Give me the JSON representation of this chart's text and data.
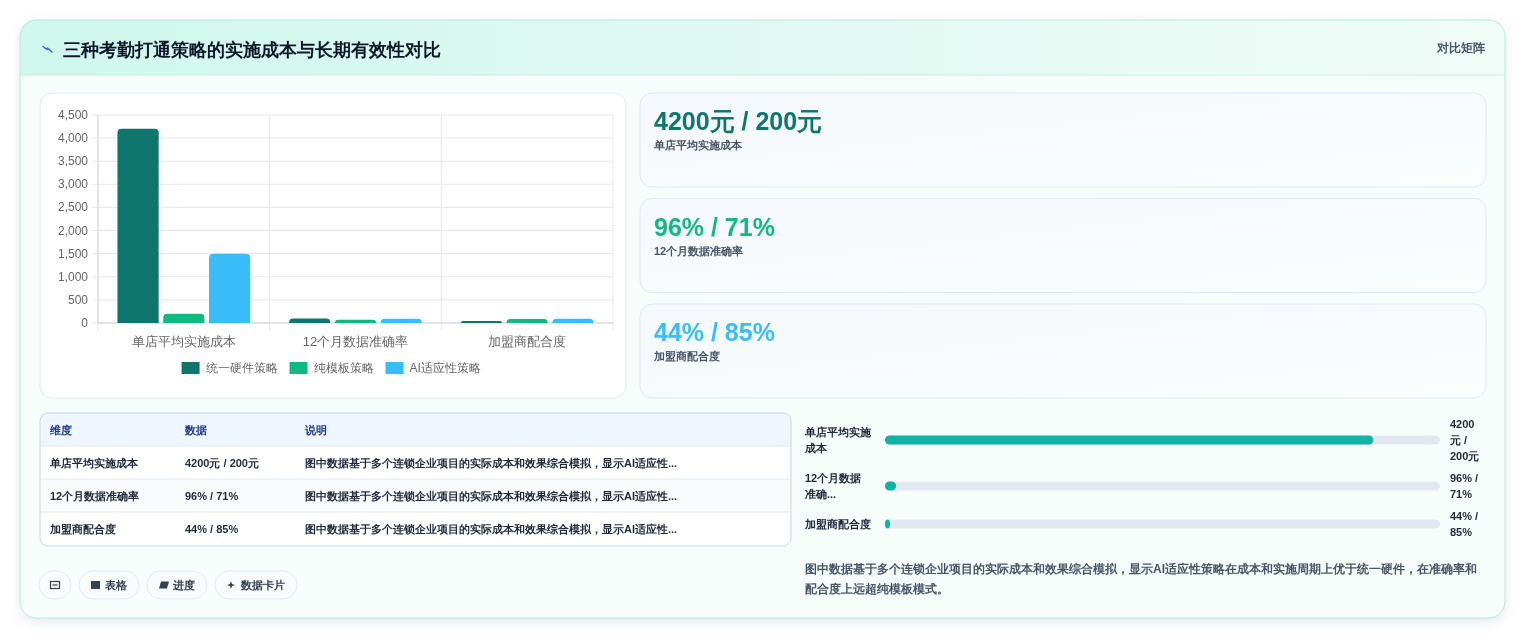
{
  "chart_data": [
    {
      "type": "bar",
      "title": "三种考勤打通策略的实施成本与长期有效性对比",
      "categories": [
        "单店平均实施成本",
        "12个月数据准确率",
        "加盟商配合度"
      ],
      "series": [
        {
          "name": "统一硬件策略",
          "color": "#0f766e",
          "values": [
            4200,
            96,
            44
          ]
        },
        {
          "name": "纯模板策略",
          "color": "#10b981",
          "values": [
            200,
            71,
            85
          ]
        },
        {
          "name": "AI适应性策略",
          "color": "#38bdf8",
          "values": [
            1500,
            90,
            90
          ]
        }
      ],
      "ylim": [
        0,
        4500
      ],
      "yticks": [
        0,
        500,
        {
          "value": 1000,
          "label": "1,000"
        },
        {
          "value": 1500,
          "label": "1,500"
        },
        {
          "value": 2000,
          "label": "2,000"
        },
        {
          "value": 2500,
          "label": "2,500"
        },
        {
          "value": 3000,
          "label": "3,000"
        },
        {
          "value": 3500,
          "label": "3,500"
        },
        {
          "value": 4000,
          "label": "4,000"
        },
        {
          "value": 4500,
          "label": "4,500"
        }
      ],
      "grid": true,
      "legend": "bottom"
    },
    {
      "type": "other",
      "title": "对比矩阵",
      "annotations": [
        "4200元 / 200元",
        "单店平均实施成本",
        "96% / 71%",
        "12个月数据准确率",
        "44% / 85%",
        "加盟商配合度"
      ]
    },
    {
      "type": "other",
      "annotations": [
        "维度",
        "数据",
        "说明",
        "单店平均实施成本",
        "4200元 / 200元",
        "图中数据基于多个连锁企业项目的实际成本和效果综合模拟，显示AI适应性...",
        "12个月数据准确率",
        "96% / 71%",
        "图中数据基于多个连锁企业项目的实际成本和效果综合模拟，显示AI适应性...",
        "加盟商配合度",
        "44% / 85%",
        "图中数据基于多个连锁企业项目的实际成本和效果综合模拟，显示AI适应性..."
      ]
    },
    {
      "type": "bar",
      "orientation": "horizontal",
      "categories": [
        "单店平均实施成本",
        "12个月数据准确...",
        "加盟商配合度"
      ],
      "series": [
        {
          "color": "#11b4a4",
          "values": [
            4200,
            96,
            44
          ],
          "value_labels": [
            "4200元 / 200元",
            "96% / 71%",
            "44% / 85%"
          ]
        }
      ],
      "annotations": [
        "图中数据基于多个连锁企业项目的实际成本和效果综合模拟，显示AI适应性策略在成本和实施周期上优于统一硬件，在准确率和配合度上远超纯模板模式。"
      ]
    },
    {
      "type": "other",
      "annotations": [
        "表格",
        "进度",
        "数据卡片"
      ]
    }
  ]
}
